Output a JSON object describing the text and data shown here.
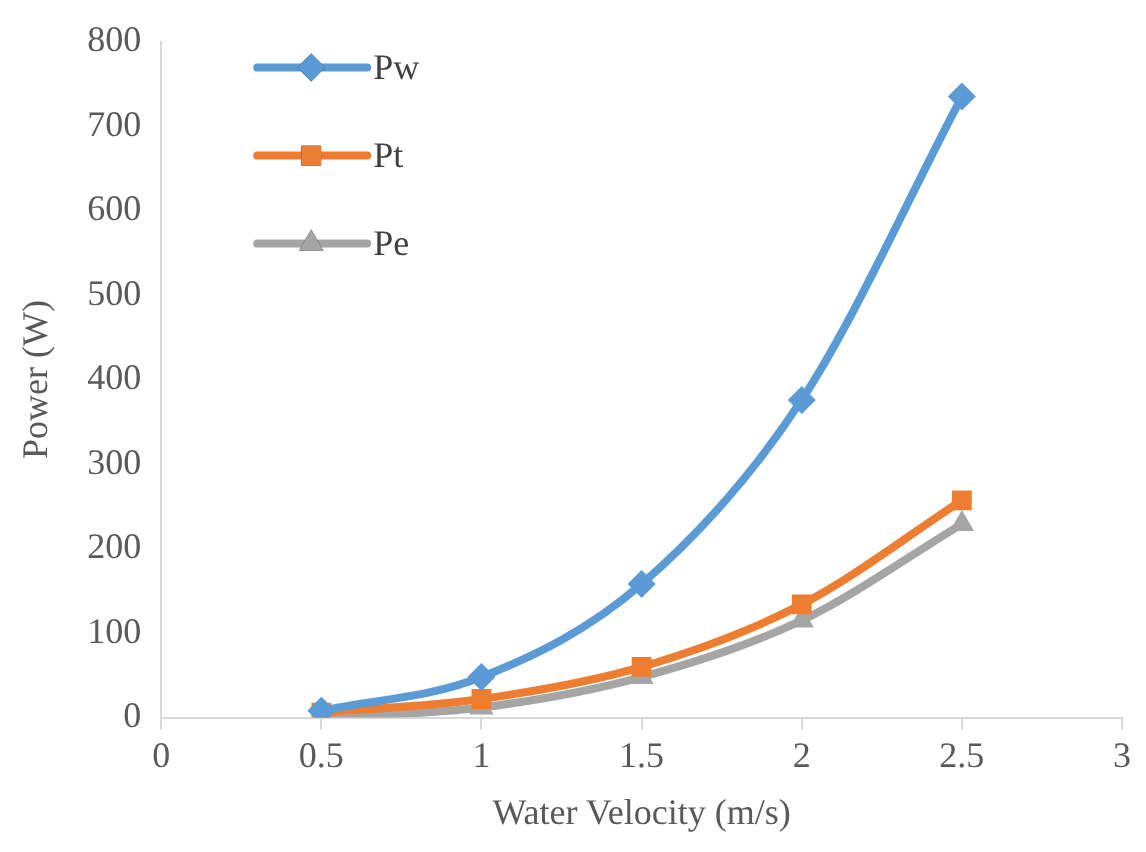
{
  "chart_data": {
    "type": "line",
    "xlabel": "Water Velocity (m/s)",
    "ylabel": "Power (W)",
    "x": [
      0.5,
      1,
      1.5,
      2,
      2.5
    ],
    "series": [
      {
        "name": "Pw",
        "color": "#5b9bd5",
        "marker": "diamond",
        "values": [
          8,
          48,
          158,
          376,
          735
        ]
      },
      {
        "name": "Pt",
        "color": "#ed7d31",
        "marker": "square",
        "values": [
          6,
          22,
          60,
          134,
          257
        ]
      },
      {
        "name": "Pe",
        "color": "#a5a5a5",
        "marker": "triangle",
        "values": [
          0,
          12,
          48,
          115,
          229
        ]
      }
    ],
    "xlim": [
      0,
      3
    ],
    "xticks": [
      0,
      0.5,
      1,
      1.5,
      2,
      2.5,
      3
    ],
    "ylim": [
      0,
      800
    ],
    "yticks": [
      0,
      100,
      200,
      300,
      400,
      500,
      600,
      700,
      800
    ],
    "grid": false,
    "legend": "top left",
    "line_style": "solid"
  }
}
